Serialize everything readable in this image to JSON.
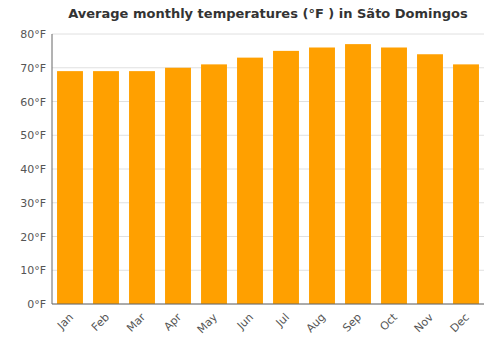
{
  "chart_data": {
    "type": "bar",
    "title": "Average monthly temperatures (°F ) in Sãto Domingos",
    "categories": [
      "Jan",
      "Feb",
      "Mar",
      "Apr",
      "May",
      "Jun",
      "Jul",
      "Aug",
      "Sep",
      "Oct",
      "Nov",
      "Dec"
    ],
    "values": [
      69,
      69,
      69,
      70,
      71,
      73,
      75,
      76,
      77,
      76,
      74,
      71
    ],
    "color": "#FFA000",
    "ylim": [
      0,
      80
    ],
    "yticks": [
      {
        "value": 0,
        "label": "0°F"
      },
      {
        "value": 10,
        "label": "10°F"
      },
      {
        "value": 20,
        "label": "20°F"
      },
      {
        "value": 30,
        "label": "30°F"
      },
      {
        "value": 40,
        "label": "40°F"
      },
      {
        "value": 50,
        "label": "50°F"
      },
      {
        "value": 60,
        "label": "60°F"
      },
      {
        "value": 70,
        "label": "70°F"
      },
      {
        "value": 80,
        "label": "80°F"
      }
    ],
    "grid": true
  }
}
